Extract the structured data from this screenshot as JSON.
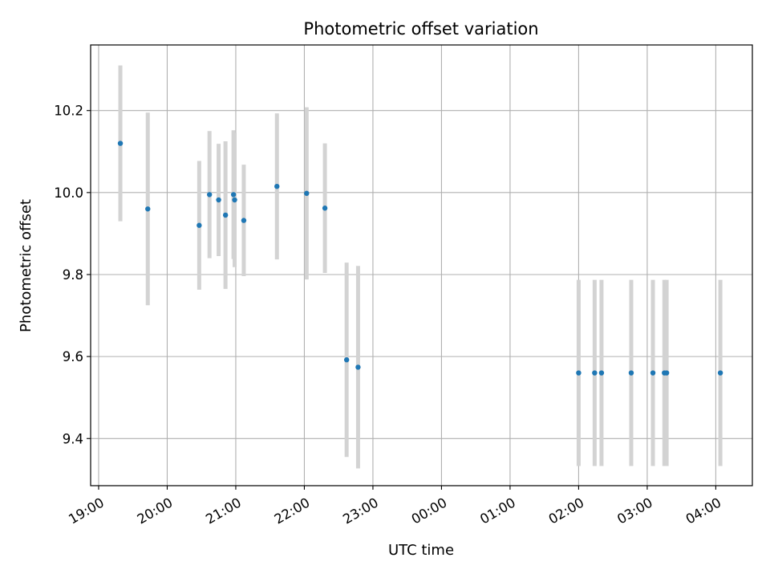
{
  "chart_data": {
    "type": "scatter",
    "title": "Photometric offset variation",
    "xlabel": "UTC time",
    "ylabel": "Photometric offset",
    "x_is_time": true,
    "x_start_date": "2000-01-01",
    "xlim": [
      "18:53",
      "04:32 +1d"
    ],
    "ylim": [
      9.285,
      10.36
    ],
    "grid": true,
    "x_ticks": [
      "19:00",
      "20:00",
      "21:00",
      "22:00",
      "23:00",
      "00:00",
      "01:00",
      "02:00",
      "03:00",
      "04:00"
    ],
    "y_ticks": [
      "9.4",
      "9.6",
      "9.8",
      "10.0",
      "10.2"
    ],
    "colors": {
      "points": "#1f77b4",
      "errorbars": "#d3d3d3",
      "grid": "#b0b0b0"
    },
    "series": [
      {
        "points": [
          {
            "time": "19:19",
            "y": 10.12,
            "err": 0.19
          },
          {
            "time": "19:43",
            "y": 9.96,
            "err": 0.235
          },
          {
            "time": "20:28",
            "y": 9.92,
            "err": 0.157
          },
          {
            "time": "20:37",
            "y": 9.995,
            "err": 0.155
          },
          {
            "time": "20:45",
            "y": 9.982,
            "err": 0.137
          },
          {
            "time": "20:51",
            "y": 9.945,
            "err": 0.18
          },
          {
            "time": "20:58",
            "y": 9.995,
            "err": 0.157
          },
          {
            "time": "20:59",
            "y": 9.982,
            "err": 0.164
          },
          {
            "time": "21:07",
            "y": 9.932,
            "err": 0.136
          },
          {
            "time": "21:36",
            "y": 10.015,
            "err": 0.178
          },
          {
            "time": "22:02",
            "y": 9.998,
            "err": 0.21
          },
          {
            "time": "22:18",
            "y": 9.962,
            "err": 0.158
          },
          {
            "time": "22:37",
            "y": 9.592,
            "err": 0.237
          },
          {
            "time": "22:47",
            "y": 9.574,
            "err": 0.247
          },
          {
            "time": "02:00 +1d",
            "y": 9.56,
            "err": 0.227
          },
          {
            "time": "02:14 +1d",
            "y": 9.56,
            "err": 0.227
          },
          {
            "time": "02:20 +1d",
            "y": 9.56,
            "err": 0.227
          },
          {
            "time": "02:46 +1d",
            "y": 9.56,
            "err": 0.227
          },
          {
            "time": "03:05 +1d",
            "y": 9.56,
            "err": 0.227
          },
          {
            "time": "03:15 +1d",
            "y": 9.56,
            "err": 0.227
          },
          {
            "time": "03:17 +1d",
            "y": 9.56,
            "err": 0.227
          },
          {
            "time": "04:04 +1d",
            "y": 9.56,
            "err": 0.227
          }
        ]
      }
    ]
  }
}
